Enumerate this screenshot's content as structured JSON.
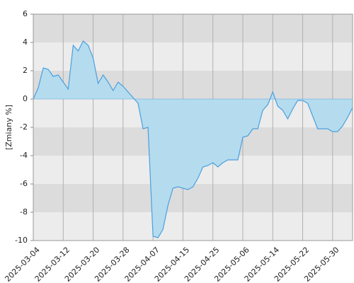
{
  "chart_data": {
    "type": "area",
    "y_label": "[Zmiany %]",
    "categories": [
      "2025-03-04",
      null,
      null,
      null,
      null,
      null,
      "2025-03-12",
      null,
      null,
      null,
      null,
      null,
      "2025-03-20",
      null,
      null,
      null,
      null,
      null,
      "2025-03-28",
      null,
      null,
      null,
      null,
      null,
      "2025-04-07",
      null,
      null,
      null,
      null,
      null,
      "2025-04-15",
      null,
      null,
      null,
      null,
      null,
      "2025-04-25",
      null,
      null,
      null,
      null,
      null,
      "2025-05-06",
      null,
      null,
      null,
      null,
      null,
      "2025-05-14",
      null,
      null,
      null,
      null,
      null,
      "2025-05-22",
      null,
      null,
      null,
      null,
      null,
      "2025-05-30",
      null,
      null,
      null,
      null
    ],
    "values": [
      0,
      0.8,
      2.2,
      2.1,
      1.6,
      1.7,
      1.2,
      0.7,
      3.8,
      3.4,
      4.1,
      3.8,
      2.9,
      1.1,
      1.7,
      1.2,
      0.6,
      1.2,
      0.9,
      0.5,
      0.1,
      -0.3,
      -2.1,
      -2.0,
      -9.7,
      -9.8,
      -9.2,
      -7.5,
      -6.3,
      -6.2,
      -6.3,
      -6.4,
      -6.2,
      -5.6,
      -4.8,
      -4.7,
      -4.5,
      -4.8,
      -4.5,
      -4.3,
      -4.3,
      -4.3,
      -2.7,
      -2.6,
      -2.1,
      -2.1,
      -0.8,
      -0.4,
      0.5,
      -0.5,
      -0.8,
      -1.4,
      -0.7,
      -0.1,
      -0.1,
      -0.3,
      -1.2,
      -2.1,
      -2.1,
      -2.1,
      -2.3,
      -2.3,
      -1.9,
      -1.3,
      -0.6
    ],
    "line_color": "#4a9fe0",
    "fill_color": "#b4dcee",
    "band_colors": [
      "#ececec",
      "#dcdcdc"
    ],
    "ylim": [
      -10,
      6
    ],
    "yticks": [
      -10,
      -8,
      -6,
      -4,
      -2,
      0,
      2,
      4,
      6
    ],
    "grid": true
  }
}
